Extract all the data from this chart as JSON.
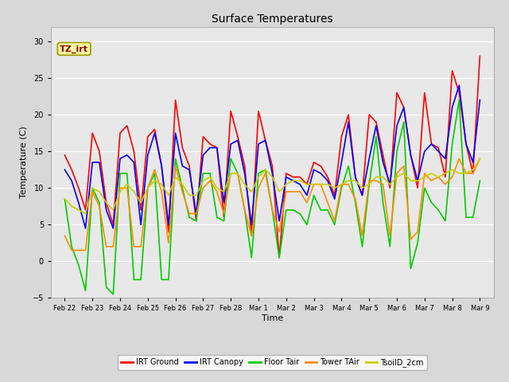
{
  "title": "Surface Temperatures",
  "xlabel": "Time",
  "ylabel": "Temperature (C)",
  "annotation_text": "TZ_irt",
  "annotation_color": "#8B0000",
  "annotation_bg": "#FFFFA0",
  "annotation_edge": "#999900",
  "ylim": [
    -5,
    32
  ],
  "yticks": [
    -5,
    0,
    5,
    10,
    15,
    20,
    25,
    30
  ],
  "fig_bg": "#D8D8D8",
  "plot_bg": "#E8E8E8",
  "legend_entries": [
    "IRT Ground",
    "IRT Canopy",
    "Floor Tair",
    "Tower TAir",
    "TsoilD_2cm"
  ],
  "legend_colors": [
    "#FF0000",
    "#0000FF",
    "#00CC00",
    "#FF8C00",
    "#CCCC00"
  ],
  "x_labels": [
    "Feb 22",
    "Feb 23",
    "Feb 24",
    "Feb 25",
    "Feb 26",
    "Feb 27",
    "Feb 28",
    "Mar 1",
    "Mar 2",
    "Mar 3",
    "Mar 4",
    "Mar 5",
    "Mar 6",
    "Mar 7",
    "Mar 8",
    "Mar 9"
  ],
  "x_values": [
    0,
    1,
    2,
    3,
    4,
    5,
    6,
    7,
    8,
    9,
    10,
    11,
    12,
    13,
    14,
    15
  ],
  "xlim": [
    -0.5,
    15.5
  ],
  "series": {
    "IRT_Ground": {
      "color": "#FF0000",
      "lw": 1.2,
      "x": [
        0.0,
        0.25,
        0.5,
        0.75,
        1.0,
        1.25,
        1.5,
        1.75,
        2.0,
        2.25,
        2.5,
        2.75,
        3.0,
        3.25,
        3.5,
        3.75,
        4.0,
        4.25,
        4.5,
        4.75,
        5.0,
        5.25,
        5.5,
        5.75,
        6.0,
        6.25,
        6.5,
        6.75,
        7.0,
        7.25,
        7.5,
        7.75,
        8.0,
        8.25,
        8.5,
        8.75,
        9.0,
        9.25,
        9.5,
        9.75,
        10.0,
        10.25,
        10.5,
        10.75,
        11.0,
        11.25,
        11.5,
        11.75,
        12.0,
        12.25,
        12.5,
        12.75,
        13.0,
        13.25,
        13.5,
        13.75,
        14.0,
        14.25,
        14.5,
        14.75,
        15.0
      ],
      "y": [
        14.5,
        12.5,
        10.0,
        7.0,
        17.5,
        15.0,
        8.0,
        5.0,
        17.5,
        18.5,
        15.0,
        7.0,
        17.0,
        18.0,
        13.0,
        4.0,
        22.0,
        15.5,
        13.0,
        5.5,
        17.0,
        16.0,
        15.5,
        6.0,
        20.5,
        17.0,
        13.0,
        3.5,
        20.5,
        16.5,
        13.0,
        0.5,
        12.0,
        11.5,
        11.5,
        10.5,
        13.5,
        13.0,
        11.5,
        9.0,
        17.0,
        20.0,
        11.5,
        9.0,
        20.0,
        19.0,
        14.5,
        10.0,
        23.0,
        21.0,
        14.5,
        10.0,
        23.0,
        16.0,
        15.5,
        11.5,
        26.0,
        23.0,
        16.0,
        12.0,
        28.0
      ]
    },
    "IRT_Canopy": {
      "color": "#0000FF",
      "lw": 1.2,
      "x": [
        0.0,
        0.25,
        0.5,
        0.75,
        1.0,
        1.25,
        1.5,
        1.75,
        2.0,
        2.25,
        2.5,
        2.75,
        3.0,
        3.25,
        3.5,
        3.75,
        4.0,
        4.25,
        4.5,
        4.75,
        5.0,
        5.25,
        5.5,
        5.75,
        6.0,
        6.25,
        6.5,
        6.75,
        7.0,
        7.25,
        7.5,
        7.75,
        8.0,
        8.25,
        8.5,
        8.75,
        9.0,
        9.25,
        9.5,
        9.75,
        10.0,
        10.25,
        10.5,
        10.75,
        11.0,
        11.25,
        11.5,
        11.75,
        12.0,
        12.25,
        12.5,
        12.75,
        13.0,
        13.25,
        13.5,
        13.75,
        14.0,
        14.25,
        14.5,
        14.75,
        15.0
      ],
      "y": [
        12.5,
        11.0,
        8.0,
        4.5,
        13.5,
        13.5,
        7.0,
        4.5,
        14.0,
        14.5,
        13.5,
        5.0,
        14.5,
        17.5,
        13.0,
        5.0,
        17.5,
        13.0,
        12.5,
        6.5,
        14.5,
        15.5,
        15.5,
        8.0,
        16.0,
        16.5,
        12.0,
        5.0,
        16.0,
        16.5,
        12.0,
        5.5,
        11.5,
        11.0,
        10.5,
        9.0,
        12.5,
        12.0,
        11.0,
        8.5,
        13.5,
        19.0,
        11.5,
        9.0,
        14.0,
        18.5,
        13.5,
        10.5,
        18.5,
        21.0,
        14.5,
        11.0,
        15.0,
        16.0,
        15.0,
        14.0,
        21.0,
        24.0,
        16.0,
        13.5,
        22.0
      ]
    },
    "Floor_Tair": {
      "color": "#00CC00",
      "lw": 1.2,
      "x": [
        0.0,
        0.25,
        0.5,
        0.75,
        1.0,
        1.25,
        1.5,
        1.75,
        2.0,
        2.25,
        2.5,
        2.75,
        3.0,
        3.25,
        3.5,
        3.75,
        4.0,
        4.25,
        4.5,
        4.75,
        5.0,
        5.25,
        5.5,
        5.75,
        6.0,
        6.25,
        6.5,
        6.75,
        7.0,
        7.25,
        7.5,
        7.75,
        8.0,
        8.25,
        8.5,
        8.75,
        9.0,
        9.25,
        9.5,
        9.75,
        10.0,
        10.25,
        10.5,
        10.75,
        11.0,
        11.25,
        11.5,
        11.75,
        12.0,
        12.25,
        12.5,
        12.75,
        13.0,
        13.25,
        13.5,
        13.75,
        14.0,
        14.25,
        14.5,
        14.75,
        15.0
      ],
      "y": [
        8.5,
        2.0,
        -0.5,
        -4.0,
        10.0,
        8.0,
        -3.5,
        -4.5,
        12.0,
        12.0,
        -2.5,
        -2.5,
        10.0,
        12.0,
        -2.5,
        -2.5,
        14.0,
        10.0,
        6.0,
        5.5,
        12.0,
        12.0,
        6.0,
        5.5,
        14.0,
        12.0,
        7.0,
        0.5,
        12.0,
        12.5,
        7.0,
        0.5,
        7.0,
        7.0,
        6.5,
        5.0,
        9.0,
        7.0,
        7.0,
        5.0,
        10.0,
        13.0,
        8.0,
        2.0,
        10.5,
        17.0,
        8.0,
        2.0,
        15.0,
        19.0,
        -1.0,
        2.5,
        10.0,
        8.0,
        7.0,
        5.5,
        16.0,
        22.0,
        6.0,
        6.0,
        11.0
      ]
    },
    "Tower_TAir": {
      "color": "#FF8C00",
      "lw": 1.2,
      "x": [
        0.0,
        0.25,
        0.5,
        0.75,
        1.0,
        1.25,
        1.5,
        1.75,
        2.0,
        2.25,
        2.5,
        2.75,
        3.0,
        3.25,
        3.5,
        3.75,
        4.0,
        4.25,
        4.5,
        4.75,
        5.0,
        5.25,
        5.5,
        5.75,
        6.0,
        6.25,
        6.5,
        6.75,
        7.0,
        7.25,
        7.5,
        7.75,
        8.0,
        8.25,
        8.5,
        8.75,
        9.0,
        9.25,
        9.5,
        9.75,
        10.0,
        10.25,
        10.5,
        10.75,
        11.0,
        11.25,
        11.5,
        11.75,
        12.0,
        12.25,
        12.5,
        12.75,
        13.0,
        13.25,
        13.5,
        13.75,
        14.0,
        14.25,
        14.5,
        14.75,
        15.0
      ],
      "y": [
        3.5,
        1.5,
        1.5,
        1.5,
        9.5,
        7.5,
        2.0,
        2.0,
        10.0,
        10.0,
        2.0,
        2.0,
        10.0,
        12.5,
        9.5,
        2.5,
        13.0,
        9.5,
        6.5,
        6.5,
        10.0,
        11.0,
        9.5,
        6.5,
        12.0,
        12.0,
        7.0,
        3.5,
        10.0,
        12.0,
        7.0,
        4.0,
        9.5,
        9.5,
        9.5,
        8.0,
        10.5,
        10.5,
        8.0,
        5.5,
        10.5,
        10.5,
        8.5,
        3.5,
        11.0,
        11.0,
        10.5,
        3.5,
        12.0,
        13.0,
        3.0,
        4.0,
        12.0,
        11.0,
        11.5,
        10.5,
        11.5,
        14.0,
        12.0,
        12.0,
        14.0
      ]
    },
    "TsoilD_2cm": {
      "color": "#CCCC00",
      "lw": 1.2,
      "x": [
        0.0,
        0.25,
        0.5,
        0.75,
        1.0,
        1.25,
        1.5,
        1.75,
        2.0,
        2.25,
        2.5,
        2.75,
        3.0,
        3.25,
        3.5,
        3.75,
        4.0,
        4.25,
        4.5,
        4.75,
        5.0,
        5.25,
        5.5,
        5.75,
        6.0,
        6.25,
        6.5,
        6.75,
        7.0,
        7.25,
        7.5,
        7.75,
        8.0,
        8.25,
        8.5,
        8.75,
        9.0,
        9.25,
        9.5,
        9.75,
        10.0,
        10.25,
        10.5,
        10.75,
        11.0,
        11.25,
        11.5,
        11.75,
        12.0,
        12.25,
        12.5,
        12.75,
        13.0,
        13.25,
        13.5,
        13.75,
        14.0,
        14.25,
        14.5,
        14.75,
        15.0
      ],
      "y": [
        8.5,
        7.5,
        7.0,
        6.5,
        10.0,
        9.5,
        8.0,
        7.0,
        9.5,
        10.5,
        9.5,
        8.0,
        10.0,
        11.0,
        10.5,
        9.0,
        11.5,
        10.5,
        9.0,
        9.0,
        11.0,
        11.5,
        10.0,
        9.5,
        12.0,
        12.0,
        10.5,
        9.5,
        11.5,
        12.5,
        11.5,
        9.5,
        10.5,
        11.0,
        11.0,
        10.5,
        10.5,
        10.5,
        10.5,
        10.0,
        10.5,
        11.0,
        11.0,
        10.0,
        10.5,
        11.5,
        11.5,
        10.5,
        11.5,
        12.0,
        11.0,
        11.0,
        11.5,
        12.0,
        11.5,
        12.0,
        12.5,
        12.0,
        12.0,
        12.5,
        14.0
      ]
    }
  }
}
